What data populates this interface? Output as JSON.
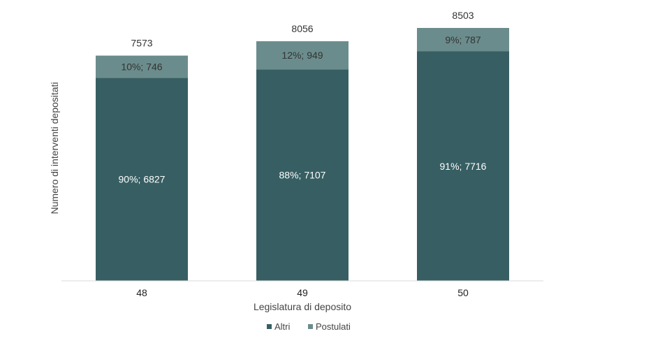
{
  "chart_data": {
    "type": "bar",
    "stacked": true,
    "categories": [
      "48",
      "49",
      "50"
    ],
    "series": [
      {
        "name": "Altri",
        "values": [
          6827,
          7107,
          7716
        ],
        "labels": [
          "90%; 6827",
          "88%; 7107",
          "91%; 7716"
        ],
        "color": "#375f63"
      },
      {
        "name": "Postulati",
        "values": [
          746,
          949,
          787
        ],
        "labels": [
          "10%; 746",
          "12%; 949",
          "9%; 787"
        ],
        "color": "#6b8c8c"
      }
    ],
    "totals": [
      "7573",
      "8056",
      "8503"
    ],
    "total_values": [
      7573,
      8056,
      8503
    ],
    "xlabel": "Legislatura di deposito",
    "ylabel": "Numero di interventi depositati",
    "ylim": [
      0,
      8503
    ],
    "grid": false,
    "legend_position": "bottom"
  },
  "colors": {
    "axis_line": "#d9d9d9"
  }
}
